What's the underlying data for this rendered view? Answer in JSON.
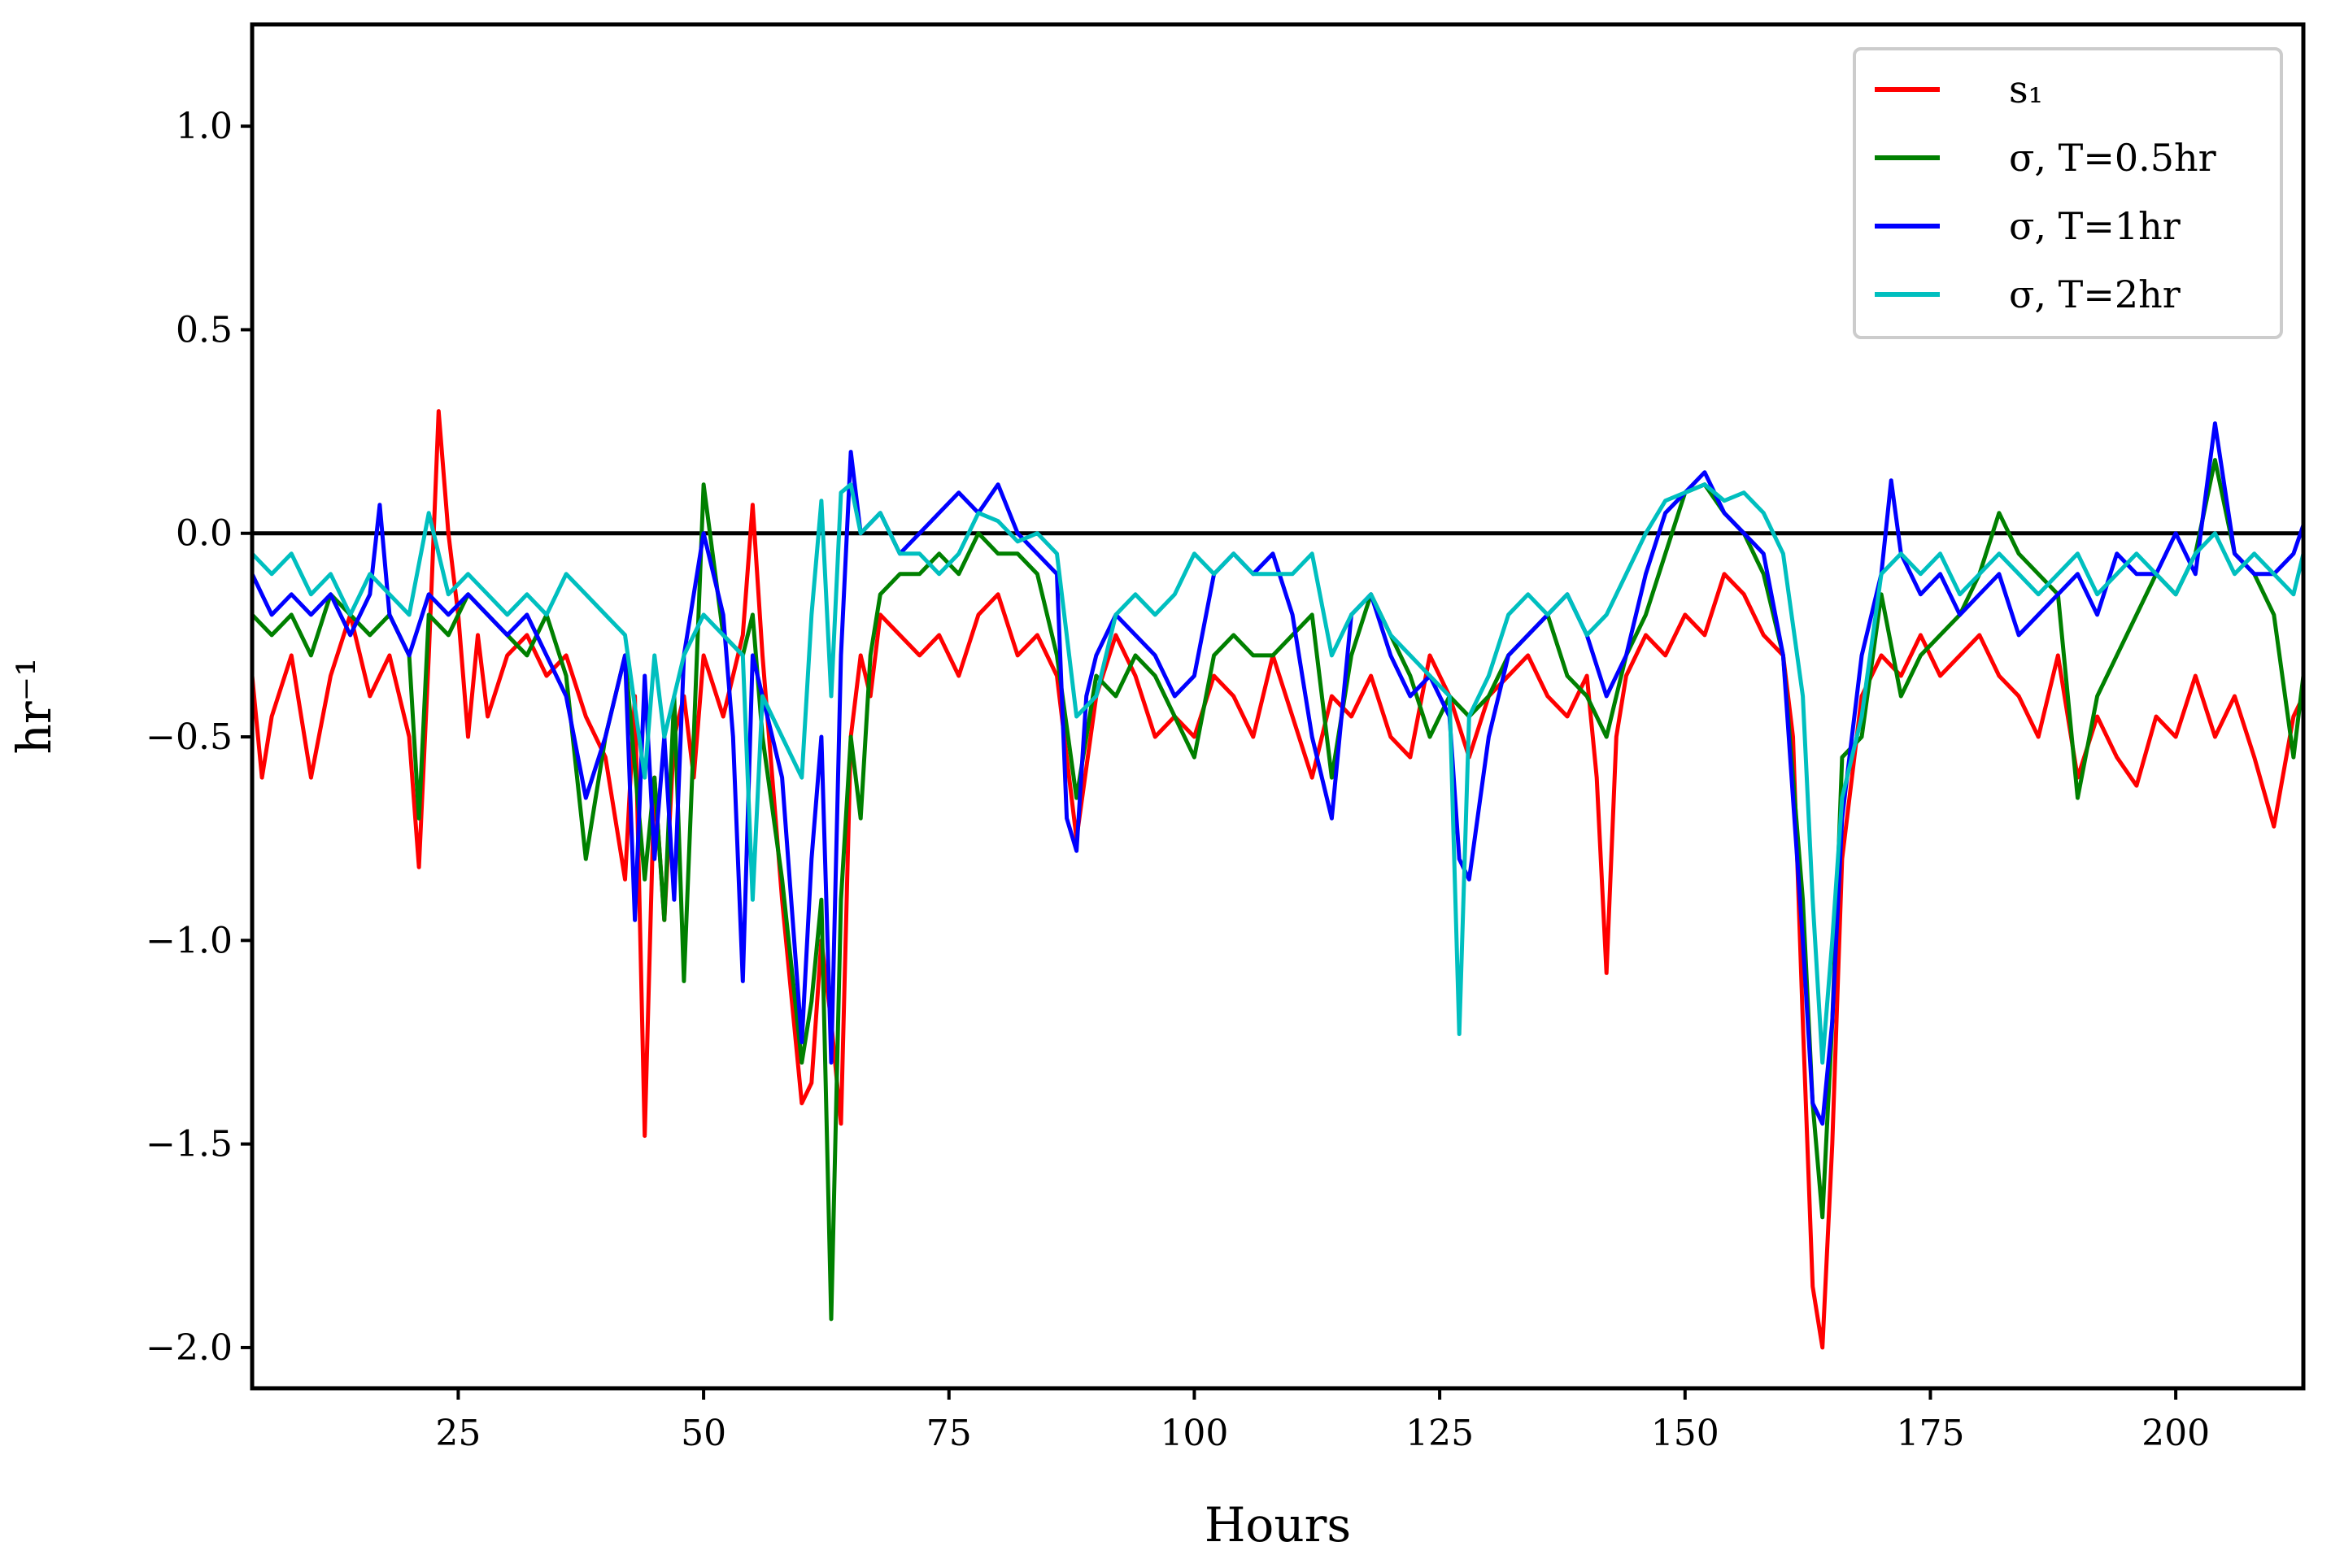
{
  "chart_data": {
    "type": "line",
    "title": "",
    "xlabel": "Hours",
    "ylabel": "hr⁻¹",
    "xlim": [
      4,
      213
    ],
    "ylim": [
      -2.1,
      1.25
    ],
    "xticks": [
      25,
      50,
      75,
      100,
      125,
      150,
      175,
      200
    ],
    "xtick_labels": [
      "25",
      "50",
      "75",
      "100",
      "125",
      "150",
      "175",
      "200"
    ],
    "yticks": [
      1.0,
      0.5,
      0.0,
      -0.5,
      -1.0,
      -1.5,
      -2.0
    ],
    "ytick_labels": [
      "1.0",
      "0.5",
      "0.0",
      "−0.5",
      "−1.0",
      "−1.5",
      "−2.0"
    ],
    "grid": false,
    "legend_position": "top-right",
    "reference_line": {
      "y": 0.0,
      "color": "#000000"
    },
    "series": [
      {
        "name": "s₁",
        "color": "#ff0000",
        "x": [
          4,
          5,
          6,
          8,
          10,
          12,
          14,
          16,
          18,
          20,
          21,
          22,
          23,
          24,
          25,
          26,
          27,
          28,
          30,
          32,
          34,
          36,
          38,
          40,
          42,
          43,
          44,
          45,
          46,
          47,
          48,
          49,
          50,
          52,
          54,
          55,
          56,
          58,
          60,
          61,
          62,
          63,
          64,
          65,
          66,
          67,
          68,
          70,
          72,
          74,
          76,
          78,
          80,
          82,
          84,
          86,
          88,
          90,
          92,
          94,
          96,
          98,
          100,
          102,
          104,
          106,
          108,
          110,
          112,
          114,
          116,
          118,
          120,
          122,
          124,
          126,
          128,
          130,
          132,
          134,
          136,
          138,
          140,
          141,
          142,
          143,
          144,
          146,
          148,
          150,
          152,
          154,
          156,
          158,
          160,
          161,
          162,
          163,
          164,
          165,
          166,
          168,
          170,
          172,
          174,
          176,
          178,
          180,
          182,
          184,
          186,
          188,
          190,
          192,
          194,
          196,
          198,
          200,
          202,
          204,
          206,
          208,
          210,
          212,
          213
        ],
        "y": [
          -0.35,
          -0.6,
          -0.45,
          -0.3,
          -0.6,
          -0.35,
          -0.2,
          -0.4,
          -0.3,
          -0.5,
          -0.82,
          -0.3,
          0.3,
          0.0,
          -0.2,
          -0.5,
          -0.25,
          -0.45,
          -0.3,
          -0.25,
          -0.35,
          -0.3,
          -0.45,
          -0.55,
          -0.85,
          -0.4,
          -1.48,
          -0.6,
          -0.95,
          -0.5,
          -0.4,
          -0.6,
          -0.3,
          -0.45,
          -0.25,
          0.07,
          -0.3,
          -0.9,
          -1.4,
          -1.35,
          -1.0,
          -1.2,
          -1.45,
          -0.5,
          -0.3,
          -0.4,
          -0.2,
          -0.25,
          -0.3,
          -0.25,
          -0.35,
          -0.2,
          -0.15,
          -0.3,
          -0.25,
          -0.35,
          -0.75,
          -0.4,
          -0.25,
          -0.35,
          -0.5,
          -0.45,
          -0.5,
          -0.35,
          -0.4,
          -0.5,
          -0.3,
          -0.45,
          -0.6,
          -0.4,
          -0.45,
          -0.35,
          -0.5,
          -0.55,
          -0.3,
          -0.4,
          -0.55,
          -0.4,
          -0.35,
          -0.3,
          -0.4,
          -0.45,
          -0.35,
          -0.6,
          -1.08,
          -0.5,
          -0.35,
          -0.25,
          -0.3,
          -0.2,
          -0.25,
          -0.1,
          -0.15,
          -0.25,
          -0.3,
          -0.5,
          -1.2,
          -1.85,
          -2.0,
          -1.5,
          -0.8,
          -0.4,
          -0.3,
          -0.35,
          -0.25,
          -0.35,
          -0.3,
          -0.25,
          -0.35,
          -0.4,
          -0.5,
          -0.3,
          -0.6,
          -0.45,
          -0.55,
          -0.62,
          -0.45,
          -0.5,
          -0.35,
          -0.5,
          -0.4,
          -0.55,
          -0.72,
          -0.45,
          -0.4
        ]
      },
      {
        "name": "σ, T=0.5hr",
        "color": "#008000",
        "x": [
          4,
          6,
          8,
          10,
          12,
          14,
          16,
          18,
          20,
          21,
          22,
          24,
          26,
          28,
          30,
          32,
          34,
          36,
          38,
          40,
          42,
          44,
          45,
          46,
          47,
          48,
          49,
          50,
          52,
          54,
          55,
          56,
          58,
          60,
          61,
          62,
          63,
          64,
          65,
          66,
          67,
          68,
          70,
          72,
          74,
          76,
          78,
          80,
          82,
          84,
          86,
          88,
          90,
          92,
          94,
          96,
          98,
          100,
          102,
          104,
          106,
          108,
          110,
          112,
          114,
          116,
          118,
          120,
          122,
          124,
          126,
          128,
          130,
          132,
          134,
          136,
          138,
          140,
          142,
          144,
          146,
          148,
          150,
          152,
          154,
          156,
          158,
          160,
          162,
          163,
          164,
          165,
          166,
          168,
          170,
          172,
          174,
          176,
          178,
          180,
          182,
          184,
          186,
          188,
          190,
          192,
          194,
          196,
          198,
          200,
          202,
          204,
          206,
          208,
          210,
          212,
          213
        ],
        "y": [
          -0.2,
          -0.25,
          -0.2,
          -0.3,
          -0.15,
          -0.2,
          -0.25,
          -0.2,
          -0.3,
          -0.7,
          -0.2,
          -0.25,
          -0.15,
          -0.2,
          -0.25,
          -0.3,
          -0.2,
          -0.35,
          -0.8,
          -0.5,
          -0.3,
          -0.85,
          -0.6,
          -0.95,
          -0.4,
          -1.1,
          -0.5,
          0.12,
          -0.25,
          -0.3,
          -0.2,
          -0.5,
          -0.85,
          -1.3,
          -1.15,
          -0.9,
          -1.93,
          -0.9,
          -0.5,
          -0.7,
          -0.3,
          -0.15,
          -0.1,
          -0.1,
          -0.05,
          -0.1,
          0.0,
          -0.05,
          -0.05,
          -0.1,
          -0.3,
          -0.65,
          -0.35,
          -0.4,
          -0.3,
          -0.35,
          -0.45,
          -0.55,
          -0.3,
          -0.25,
          -0.3,
          -0.3,
          -0.25,
          -0.2,
          -0.6,
          -0.3,
          -0.15,
          -0.25,
          -0.35,
          -0.5,
          -0.4,
          -0.45,
          -0.4,
          -0.3,
          -0.25,
          -0.2,
          -0.35,
          -0.4,
          -0.5,
          -0.3,
          -0.2,
          -0.05,
          0.1,
          0.12,
          0.05,
          0.0,
          -0.1,
          -0.3,
          -0.9,
          -1.4,
          -1.68,
          -1.2,
          -0.55,
          -0.5,
          -0.15,
          -0.4,
          -0.3,
          -0.25,
          -0.2,
          -0.1,
          0.05,
          -0.05,
          -0.1,
          -0.15,
          -0.65,
          -0.4,
          -0.3,
          -0.2,
          -0.1,
          -0.15,
          -0.05,
          0.18,
          -0.05,
          -0.1,
          -0.2,
          -0.55,
          -0.35
        ]
      },
      {
        "name": "σ, T=1hr",
        "color": "#0000ff",
        "x": [
          4,
          6,
          8,
          10,
          12,
          14,
          16,
          17,
          18,
          20,
          22,
          24,
          26,
          28,
          30,
          32,
          34,
          36,
          38,
          40,
          42,
          43,
          44,
          45,
          46,
          47,
          48,
          50,
          52,
          53,
          54,
          55,
          56,
          58,
          60,
          61,
          62,
          63,
          64,
          65,
          66,
          68,
          70,
          72,
          74,
          76,
          78,
          80,
          82,
          84,
          86,
          87,
          88,
          89,
          90,
          92,
          94,
          96,
          98,
          100,
          102,
          104,
          106,
          108,
          110,
          112,
          114,
          116,
          118,
          120,
          122,
          124,
          126,
          127,
          128,
          130,
          132,
          134,
          136,
          138,
          140,
          142,
          144,
          146,
          148,
          150,
          152,
          154,
          156,
          158,
          160,
          162,
          163,
          164,
          165,
          166,
          168,
          170,
          171,
          172,
          174,
          176,
          178,
          180,
          182,
          184,
          186,
          188,
          190,
          192,
          194,
          196,
          198,
          200,
          202,
          204,
          206,
          208,
          210,
          212,
          213
        ],
        "y": [
          -0.1,
          -0.2,
          -0.15,
          -0.2,
          -0.15,
          -0.25,
          -0.15,
          0.07,
          -0.2,
          -0.3,
          -0.15,
          -0.2,
          -0.15,
          -0.2,
          -0.25,
          -0.2,
          -0.3,
          -0.4,
          -0.65,
          -0.5,
          -0.3,
          -0.95,
          -0.35,
          -0.8,
          -0.5,
          -0.9,
          -0.3,
          0.0,
          -0.2,
          -0.5,
          -1.1,
          -0.3,
          -0.4,
          -0.6,
          -1.25,
          -0.8,
          -0.5,
          -1.3,
          -0.3,
          0.2,
          0.0,
          0.05,
          -0.05,
          0.0,
          0.05,
          0.1,
          0.05,
          0.12,
          0.0,
          -0.05,
          -0.1,
          -0.7,
          -0.78,
          -0.4,
          -0.3,
          -0.2,
          -0.25,
          -0.3,
          -0.4,
          -0.35,
          -0.1,
          -0.05,
          -0.1,
          -0.05,
          -0.2,
          -0.5,
          -0.7,
          -0.2,
          -0.15,
          -0.3,
          -0.4,
          -0.35,
          -0.45,
          -0.8,
          -0.85,
          -0.5,
          -0.3,
          -0.25,
          -0.2,
          -0.15,
          -0.25,
          -0.4,
          -0.3,
          -0.1,
          0.05,
          0.1,
          0.15,
          0.05,
          0.0,
          -0.05,
          -0.3,
          -1.0,
          -1.4,
          -1.45,
          -1.2,
          -0.7,
          -0.3,
          -0.1,
          0.13,
          -0.05,
          -0.15,
          -0.1,
          -0.2,
          -0.15,
          -0.1,
          -0.25,
          -0.2,
          -0.15,
          -0.1,
          -0.2,
          -0.05,
          -0.1,
          -0.1,
          0.0,
          -0.1,
          0.27,
          -0.05,
          -0.1,
          -0.1,
          -0.05,
          0.02
        ]
      },
      {
        "name": "σ, T=2hr",
        "color": "#00bfbf",
        "x": [
          4,
          6,
          8,
          10,
          12,
          14,
          16,
          18,
          20,
          22,
          24,
          26,
          28,
          30,
          32,
          34,
          36,
          38,
          40,
          42,
          44,
          45,
          46,
          47,
          48,
          50,
          52,
          54,
          55,
          56,
          58,
          60,
          61,
          62,
          63,
          64,
          65,
          66,
          68,
          70,
          72,
          74,
          76,
          78,
          80,
          82,
          84,
          86,
          88,
          90,
          92,
          94,
          96,
          98,
          100,
          102,
          104,
          106,
          108,
          110,
          112,
          114,
          116,
          118,
          120,
          122,
          124,
          126,
          127,
          128,
          130,
          132,
          134,
          136,
          138,
          140,
          142,
          144,
          146,
          148,
          150,
          152,
          154,
          156,
          158,
          160,
          162,
          163,
          164,
          165,
          166,
          168,
          170,
          172,
          174,
          176,
          178,
          180,
          182,
          184,
          186,
          188,
          190,
          192,
          194,
          196,
          198,
          200,
          202,
          204,
          206,
          208,
          210,
          212,
          213
        ],
        "y": [
          -0.05,
          -0.1,
          -0.05,
          -0.15,
          -0.1,
          -0.2,
          -0.1,
          -0.15,
          -0.2,
          0.05,
          -0.15,
          -0.1,
          -0.15,
          -0.2,
          -0.15,
          -0.2,
          -0.1,
          -0.15,
          -0.2,
          -0.25,
          -0.6,
          -0.3,
          -0.5,
          -0.4,
          -0.3,
          -0.2,
          -0.25,
          -0.3,
          -0.9,
          -0.4,
          -0.5,
          -0.6,
          -0.2,
          0.08,
          -0.4,
          0.1,
          0.12,
          0.0,
          0.05,
          -0.05,
          -0.05,
          -0.1,
          -0.05,
          0.05,
          0.03,
          -0.02,
          0.0,
          -0.05,
          -0.45,
          -0.4,
          -0.2,
          -0.15,
          -0.2,
          -0.15,
          -0.05,
          -0.1,
          -0.05,
          -0.1,
          -0.1,
          -0.1,
          -0.05,
          -0.3,
          -0.2,
          -0.15,
          -0.25,
          -0.3,
          -0.35,
          -0.4,
          -1.23,
          -0.45,
          -0.35,
          -0.2,
          -0.15,
          -0.2,
          -0.15,
          -0.25,
          -0.2,
          -0.1,
          0.0,
          0.08,
          0.1,
          0.12,
          0.08,
          0.1,
          0.05,
          -0.05,
          -0.4,
          -0.9,
          -1.3,
          -1.0,
          -0.65,
          -0.45,
          -0.1,
          -0.05,
          -0.1,
          -0.05,
          -0.15,
          -0.1,
          -0.05,
          -0.1,
          -0.15,
          -0.1,
          -0.05,
          -0.15,
          -0.1,
          -0.05,
          -0.1,
          -0.15,
          -0.05,
          0.0,
          -0.1,
          -0.05,
          -0.1,
          -0.15,
          -0.05
        ]
      }
    ]
  }
}
